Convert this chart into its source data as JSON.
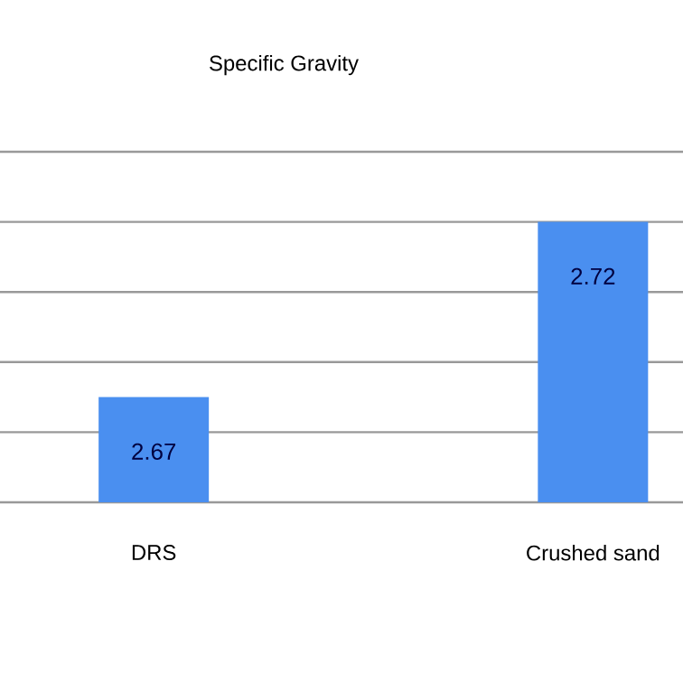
{
  "chart_data": {
    "type": "bar",
    "title": "Specific Gravity",
    "categories": [
      "DRS",
      "Crushed sand"
    ],
    "values": [
      2.67,
      2.72
    ],
    "color": "#4a8ff0",
    "data_labels": true,
    "ylim": [
      2.64,
      2.74
    ],
    "yticks": [
      {
        "value": 2.64,
        "label": null
      },
      {
        "value": 2.66,
        "label": null
      },
      {
        "value": 2.68,
        "label": null
      },
      {
        "value": 2.7,
        "label": null
      },
      {
        "value": 2.72,
        "label": null
      },
      {
        "value": 2.74,
        "label": null
      }
    ],
    "tick_labels": "x",
    "grid": "y"
  }
}
